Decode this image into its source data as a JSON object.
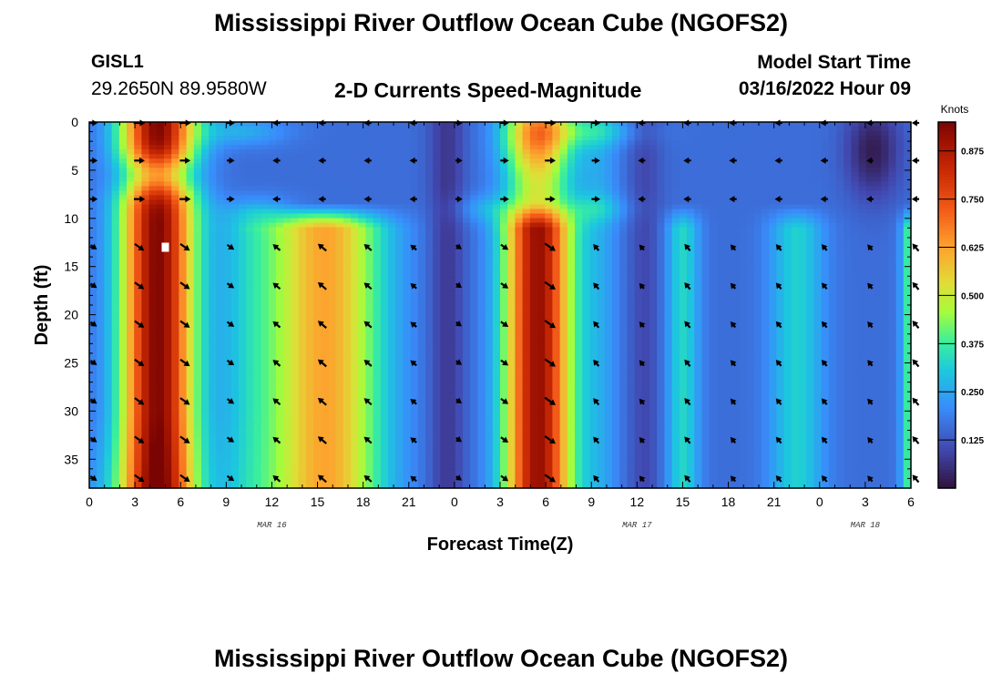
{
  "header": {
    "title": "Mississippi River Outflow Ocean Cube (NGOFS2)",
    "station_id": "GISL1",
    "station_coords": "29.2650N  89.9580W",
    "panel_title": "2-D Currents Speed-Magnitude",
    "model_start_label": "Model Start Time",
    "model_start_time": "03/16/2022 Hour 09"
  },
  "footer": {
    "title": "Mississippi River Outflow Ocean Cube (NGOFS2)"
  },
  "chart_data": {
    "type": "heatmap",
    "title": "2-D Currents Speed-Magnitude",
    "xlabel": "Forecast Time(Z)",
    "ylabel": "Depth (ft)",
    "x_range_hours": [
      0,
      54
    ],
    "y_range_ft": [
      0,
      38
    ],
    "y_inverted": true,
    "x_ticks": [
      {
        "hour": 0,
        "label": "0"
      },
      {
        "hour": 3,
        "label": "3"
      },
      {
        "hour": 6,
        "label": "6"
      },
      {
        "hour": 9,
        "label": "9"
      },
      {
        "hour": 12,
        "label": "12"
      },
      {
        "hour": 15,
        "label": "15"
      },
      {
        "hour": 18,
        "label": "18"
      },
      {
        "hour": 21,
        "label": "21"
      },
      {
        "hour": 24,
        "label": "0"
      },
      {
        "hour": 27,
        "label": "3"
      },
      {
        "hour": 30,
        "label": "6"
      },
      {
        "hour": 33,
        "label": "9"
      },
      {
        "hour": 36,
        "label": "12"
      },
      {
        "hour": 39,
        "label": "15"
      },
      {
        "hour": 42,
        "label": "18"
      },
      {
        "hour": 45,
        "label": "21"
      },
      {
        "hour": 48,
        "label": "0"
      },
      {
        "hour": 51,
        "label": "3"
      },
      {
        "hour": 54,
        "label": "6"
      }
    ],
    "date_labels": [
      {
        "hour": 12,
        "label": "MAR 16"
      },
      {
        "hour": 36,
        "label": "MAR 17"
      },
      {
        "hour": 51,
        "label": "MAR 18"
      }
    ],
    "y_ticks": [
      0,
      5,
      10,
      15,
      20,
      25,
      30,
      35
    ],
    "colorbar": {
      "units": "Knots",
      "range": [
        0,
        0.95
      ],
      "ticks": [
        0.125,
        0.25,
        0.375,
        0.5,
        0.625,
        0.75,
        0.875
      ],
      "tick_labels": [
        "0.125",
        "0.250",
        "0.375",
        "0.500",
        "0.625",
        "0.750",
        "0.875"
      ]
    },
    "profile_depths_ft": [
      0,
      4,
      8,
      13,
      17,
      21,
      25,
      29,
      33,
      37
    ],
    "speed_peaks": [
      {
        "hour": 4.5,
        "speed_knots": 0.93,
        "depth_band": "full column"
      },
      {
        "hour": 15.5,
        "speed_knots": 0.62,
        "depth_band": "11-37 ft"
      },
      {
        "hour": 29.5,
        "speed_knots": 0.9,
        "depth_band": "full column"
      },
      {
        "hour": 51.5,
        "speed_knots": 0.07,
        "depth_band": "near surface (minimum)"
      }
    ],
    "speed_minima_hours": [
      0,
      10.5,
      23.5,
      36.5,
      41,
      51.5
    ],
    "marker": {
      "hour": 5,
      "depth_ft": 13
    }
  }
}
